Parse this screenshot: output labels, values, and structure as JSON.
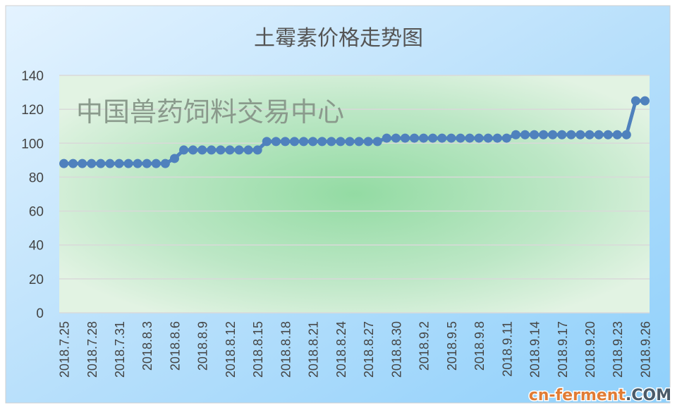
{
  "chart_data": {
    "type": "line",
    "title": "土霉素价格走势图",
    "watermark": "中国兽药饲料交易中心",
    "logo": "cn-ferment.COM",
    "xlabel": "",
    "ylabel": "",
    "ylim": [
      0,
      140
    ],
    "yticks": [
      0,
      20,
      40,
      60,
      80,
      100,
      120,
      140
    ],
    "grid": true,
    "legend": "none",
    "series_color": "#4F81BD",
    "x": [
      "2018.7.25",
      "2018.7.26",
      "2018.7.27",
      "2018.7.28",
      "2018.7.29",
      "2018.7.30",
      "2018.7.31",
      "2018.8.1",
      "2018.8.2",
      "2018.8.3",
      "2018.8.4",
      "2018.8.5",
      "2018.8.6",
      "2018.8.7",
      "2018.8.8",
      "2018.8.9",
      "2018.8.10",
      "2018.8.11",
      "2018.8.12",
      "2018.8.13",
      "2018.8.14",
      "2018.8.15",
      "2018.8.16",
      "2018.8.17",
      "2018.8.18",
      "2018.8.19",
      "2018.8.20",
      "2018.8.21",
      "2018.8.22",
      "2018.8.23",
      "2018.8.24",
      "2018.8.25",
      "2018.8.26",
      "2018.8.27",
      "2018.8.28",
      "2018.8.29",
      "2018.8.30",
      "2018.8.31",
      "2018.9.1",
      "2018.9.2",
      "2018.9.3",
      "2018.9.4",
      "2018.9.5",
      "2018.9.6",
      "2018.9.7",
      "2018.9.8",
      "2018.9.9",
      "2018.9.10",
      "2018.9.11",
      "2018.9.12",
      "2018.9.13",
      "2018.9.14",
      "2018.9.15",
      "2018.9.16",
      "2018.9.17",
      "2018.9.18",
      "2018.9.19",
      "2018.9.20",
      "2018.9.21",
      "2018.9.22",
      "2018.9.23",
      "2018.9.24",
      "2018.9.25",
      "2018.9.26"
    ],
    "xtick_labels": [
      "2018.7.25",
      "2018.7.28",
      "2018.7.31",
      "2018.8.3",
      "2018.8.6",
      "2018.8.9",
      "2018.8.12",
      "2018.8.15",
      "2018.8.18",
      "2018.8.21",
      "2018.8.24",
      "2018.8.27",
      "2018.8.30",
      "2018.9.2",
      "2018.9.5",
      "2018.9.8",
      "2018.9.11",
      "2018.9.14",
      "2018.9.17",
      "2018.9.20",
      "2018.9.23",
      "2018.9.26"
    ],
    "values": [
      88,
      88,
      88,
      88,
      88,
      88,
      88,
      88,
      88,
      88,
      88,
      88,
      91,
      96,
      96,
      96,
      96,
      96,
      96,
      96,
      96,
      96,
      101,
      101,
      101,
      101,
      101,
      101,
      101,
      101,
      101,
      101,
      101,
      101,
      101,
      103,
      103,
      103,
      103,
      103,
      103,
      103,
      103,
      103,
      103,
      103,
      103,
      103,
      103,
      105,
      105,
      105,
      105,
      105,
      105,
      105,
      105,
      105,
      105,
      105,
      105,
      105,
      125,
      125
    ]
  }
}
